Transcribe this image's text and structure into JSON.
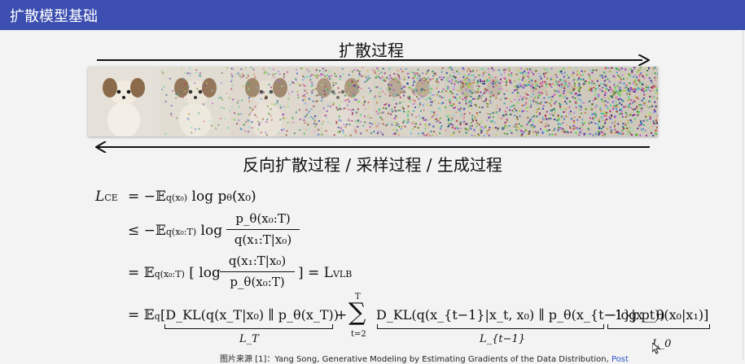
{
  "title": "扩散模型基础",
  "forward_label": "扩散过程",
  "reverse_label": "反向扩散过程 / 采样过程 / 生成过程",
  "noise_levels": [
    0.0,
    0.15,
    0.32,
    0.5,
    0.68,
    0.82,
    0.92,
    1.0
  ],
  "equations": {
    "l1_lhs": "L",
    "l1_lhs_sub": "CE",
    "l1_rhs": "= −𝔼",
    "l1_rhs_sub": "q(x₀)",
    "l1_tail": "log p",
    "l1_theta": "θ",
    "l1_end": "(x₀)",
    "l2_op": "≤ −𝔼",
    "l2_sub": "q(x₀:T)",
    "l2_log": "log",
    "l2_num": "p_θ(x₀:T)",
    "l2_den": "q(x₁:T|x₀)",
    "l3_op": "= 𝔼",
    "l3_sub": "q(x₀:T)",
    "l3_log": "[ log",
    "l3_num": "q(x₁:T|x₀)",
    "l3_den": "p_θ(x₀:T)",
    "l3_end": "] = L",
    "l3_end_sub": "VLB",
    "l4_op": "= 𝔼",
    "l4_sub": "q",
    "l4_term1": "[D_KL(q(x_T|x₀) ∥ p_θ(x_T))",
    "l4_plus": "+",
    "l4_sum": "∑",
    "l4_sum_top": "T",
    "l4_sum_bot": "t=2",
    "l4_term2": "D_KL(q(x_{t−1}|x_t, x₀) ∥ p_θ(x_{t−1}|x_t))",
    "l4_term3": "−log p_θ(x₀|x₁)]",
    "brace1": "L_T",
    "brace2": "L_{t−1}",
    "brace3": "L_0"
  },
  "caption": {
    "text": "图片来源 [1]：Yang Song, Generative Modeling by Estimating Gradients of the Data Distribution,",
    "link": "Post"
  }
}
